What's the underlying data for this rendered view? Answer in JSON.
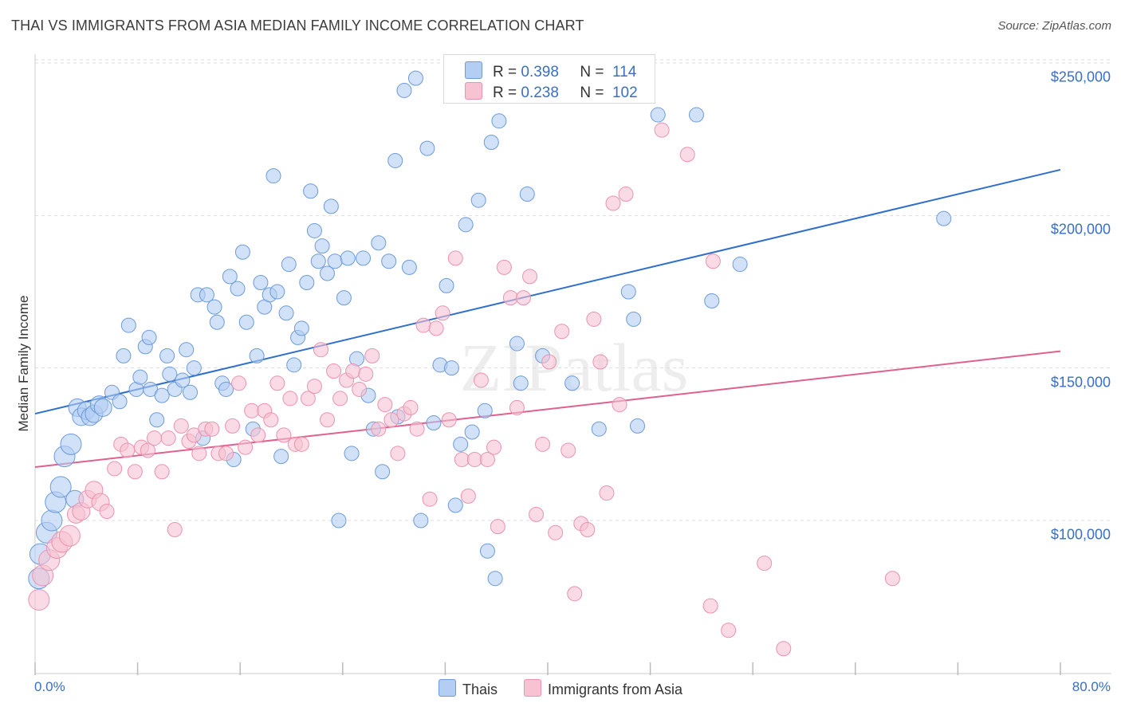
{
  "title": "THAI VS IMMIGRANTS FROM ASIA MEDIAN FAMILY INCOME CORRELATION CHART",
  "source": "Source: ZipAtlas.com",
  "watermark": "ZIPatlas",
  "colors": {
    "blue_fill": "#b3cdf3",
    "blue_stroke": "#6c9bdc",
    "blue_line": "#2f6fcc",
    "pink_fill": "#f7c2d2",
    "pink_stroke": "#ec92ae",
    "pink_line": "#e0608e",
    "axis_text": "#3a6fc2",
    "grid": "#dddddd"
  },
  "legend_top": [
    {
      "r_label": "R = ",
      "r_value": "0.398",
      "n_label": "N = ",
      "n_value": "114"
    },
    {
      "r_label": "R = ",
      "r_value": "0.238",
      "n_label": "N = ",
      "n_value": "102"
    }
  ],
  "chart_data": {
    "type": "scatter",
    "title": "THAI VS IMMIGRANTS FROM ASIA MEDIAN FAMILY INCOME CORRELATION CHART",
    "xlabel": "",
    "ylabel": "Median Family Income",
    "xlim": [
      0,
      80
    ],
    "ylim": [
      55000,
      260000
    ],
    "x_tick_labels": [
      "0.0%",
      "80.0%"
    ],
    "y_ticks": [
      100000,
      150000,
      200000,
      250000
    ],
    "y_tick_labels": [
      "$100,000",
      "$150,000",
      "$200,000",
      "$250,000"
    ],
    "legend_position": "bottom",
    "series": [
      {
        "name": "Thais",
        "r": 0.398,
        "n": 114,
        "trend": {
          "x": [
            0,
            80
          ],
          "y": [
            135000,
            215000
          ]
        },
        "points": [
          [
            0.3,
            81000
          ],
          [
            0.4,
            89000
          ],
          [
            0.9,
            96000
          ],
          [
            1.3,
            100000
          ],
          [
            1.6,
            106000
          ],
          [
            2,
            111000
          ],
          [
            2.3,
            121000
          ],
          [
            2.8,
            125000
          ],
          [
            3.1,
            107000
          ],
          [
            3.3,
            137000
          ],
          [
            3.6,
            134000
          ],
          [
            4,
            136000
          ],
          [
            4.3,
            134000
          ],
          [
            4.6,
            135000
          ],
          [
            5,
            138000
          ],
          [
            5.3,
            137000
          ],
          [
            6,
            142000
          ],
          [
            6.6,
            139000
          ],
          [
            6.9,
            154000
          ],
          [
            7.3,
            164000
          ],
          [
            7.9,
            143000
          ],
          [
            8.2,
            147000
          ],
          [
            8.6,
            157000
          ],
          [
            8.9,
            160000
          ],
          [
            9,
            143000
          ],
          [
            9.5,
            133000
          ],
          [
            9.9,
            141000
          ],
          [
            10.3,
            154000
          ],
          [
            10.5,
            148000
          ],
          [
            10.9,
            143000
          ],
          [
            11.5,
            146000
          ],
          [
            11.8,
            156000
          ],
          [
            12.1,
            142000
          ],
          [
            12.4,
            150000
          ],
          [
            12.7,
            174000
          ],
          [
            13.1,
            127000
          ],
          [
            13.4,
            174000
          ],
          [
            14,
            170000
          ],
          [
            14.2,
            165000
          ],
          [
            14.6,
            145000
          ],
          [
            14.9,
            143000
          ],
          [
            15.2,
            180000
          ],
          [
            15.5,
            120000
          ],
          [
            15.8,
            176000
          ],
          [
            16.2,
            188000
          ],
          [
            16.5,
            165000
          ],
          [
            17,
            130000
          ],
          [
            17.3,
            154000
          ],
          [
            17.6,
            178000
          ],
          [
            17.9,
            170000
          ],
          [
            18.3,
            174000
          ],
          [
            18.6,
            213000
          ],
          [
            18.9,
            175000
          ],
          [
            19.2,
            121000
          ],
          [
            19.6,
            168000
          ],
          [
            19.8,
            184000
          ],
          [
            20.2,
            151000
          ],
          [
            20.5,
            160000
          ],
          [
            20.8,
            163000
          ],
          [
            21.2,
            178000
          ],
          [
            21.5,
            208000
          ],
          [
            21.8,
            195000
          ],
          [
            22.1,
            185000
          ],
          [
            22.4,
            190000
          ],
          [
            22.8,
            181000
          ],
          [
            23.1,
            203000
          ],
          [
            23.4,
            185000
          ],
          [
            23.7,
            100000
          ],
          [
            24.1,
            173000
          ],
          [
            24.4,
            186000
          ],
          [
            24.7,
            122000
          ],
          [
            25.1,
            153000
          ],
          [
            25.6,
            186000
          ],
          [
            26,
            141000
          ],
          [
            26.4,
            130000
          ],
          [
            26.8,
            191000
          ],
          [
            27.1,
            116000
          ],
          [
            27.6,
            185000
          ],
          [
            28.1,
            218000
          ],
          [
            28.3,
            134000
          ],
          [
            28.8,
            241000
          ],
          [
            29.2,
            183000
          ],
          [
            29.7,
            245000
          ],
          [
            30.1,
            100000
          ],
          [
            30.6,
            222000
          ],
          [
            31.1,
            132000
          ],
          [
            31.6,
            151000
          ],
          [
            32.1,
            177000
          ],
          [
            32.5,
            150000
          ],
          [
            32.8,
            105000
          ],
          [
            33.2,
            125000
          ],
          [
            33.6,
            197000
          ],
          [
            34.1,
            129000
          ],
          [
            34.6,
            205000
          ],
          [
            35.1,
            136000
          ],
          [
            35.3,
            90000
          ],
          [
            35.6,
            224000
          ],
          [
            35.9,
            81000
          ],
          [
            36.2,
            231000
          ],
          [
            37.6,
            158000
          ],
          [
            37.9,
            145000
          ],
          [
            38.4,
            207000
          ],
          [
            39.6,
            154000
          ],
          [
            41.9,
            145000
          ],
          [
            44,
            130000
          ],
          [
            46.3,
            175000
          ],
          [
            46.7,
            166000
          ],
          [
            47,
            131000
          ],
          [
            48.6,
            233000
          ],
          [
            51.6,
            233000
          ],
          [
            52.8,
            172000
          ],
          [
            55,
            184000
          ],
          [
            70.9,
            199000
          ]
        ]
      },
      {
        "name": "Immigrants from Asia",
        "r": 0.238,
        "n": 102,
        "trend": {
          "x": [
            0,
            80
          ],
          "y": [
            117500,
            155500
          ]
        },
        "points": [
          [
            0.3,
            74000
          ],
          [
            0.6,
            82000
          ],
          [
            1.1,
            87000
          ],
          [
            1.7,
            91000
          ],
          [
            2.1,
            93000
          ],
          [
            2.7,
            95000
          ],
          [
            3.2,
            102000
          ],
          [
            3.6,
            103000
          ],
          [
            4.1,
            107000
          ],
          [
            4.6,
            110000
          ],
          [
            5.1,
            106000
          ],
          [
            5.6,
            103000
          ],
          [
            6.2,
            117000
          ],
          [
            6.7,
            125000
          ],
          [
            7.2,
            123000
          ],
          [
            7.8,
            116000
          ],
          [
            8.3,
            124000
          ],
          [
            8.8,
            123000
          ],
          [
            9.3,
            127000
          ],
          [
            9.9,
            116000
          ],
          [
            10.4,
            127000
          ],
          [
            10.9,
            97000
          ],
          [
            11.4,
            131000
          ],
          [
            12.0,
            126000
          ],
          [
            12.4,
            128000
          ],
          [
            12.8,
            122000
          ],
          [
            13.3,
            130000
          ],
          [
            13.8,
            130000
          ],
          [
            14.3,
            122000
          ],
          [
            14.9,
            122000
          ],
          [
            15.4,
            131000
          ],
          [
            15.9,
            145000
          ],
          [
            16.4,
            124000
          ],
          [
            16.9,
            136000
          ],
          [
            17.4,
            128000
          ],
          [
            17.9,
            136000
          ],
          [
            18.4,
            133000
          ],
          [
            18.9,
            145000
          ],
          [
            19.4,
            128000
          ],
          [
            19.9,
            140000
          ],
          [
            20.3,
            125000
          ],
          [
            20.8,
            125000
          ],
          [
            21.3,
            140000
          ],
          [
            21.8,
            144000
          ],
          [
            22.3,
            156000
          ],
          [
            22.8,
            133000
          ],
          [
            23.3,
            149000
          ],
          [
            23.8,
            140000
          ],
          [
            24.3,
            146000
          ],
          [
            24.8,
            149000
          ],
          [
            25.3,
            143000
          ],
          [
            25.8,
            148000
          ],
          [
            26.3,
            154000
          ],
          [
            26.8,
            130000
          ],
          [
            27.3,
            138000
          ],
          [
            27.8,
            133000
          ],
          [
            28.3,
            122000
          ],
          [
            28.8,
            135000
          ],
          [
            29.3,
            137000
          ],
          [
            29.8,
            130000
          ],
          [
            30.3,
            164000
          ],
          [
            30.8,
            107000
          ],
          [
            31.3,
            163000
          ],
          [
            31.8,
            168000
          ],
          [
            32.3,
            133000
          ],
          [
            32.8,
            186000
          ],
          [
            33.3,
            120000
          ],
          [
            33.8,
            108000
          ],
          [
            34.3,
            120000
          ],
          [
            34.8,
            146000
          ],
          [
            35.3,
            120000
          ],
          [
            35.8,
            124000
          ],
          [
            36.1,
            98000
          ],
          [
            36.6,
            183000
          ],
          [
            37.1,
            173000
          ],
          [
            37.6,
            137000
          ],
          [
            38.1,
            173000
          ],
          [
            38.6,
            180000
          ],
          [
            39.1,
            102000
          ],
          [
            39.6,
            125000
          ],
          [
            40.1,
            152000
          ],
          [
            40.6,
            96000
          ],
          [
            41.1,
            162000
          ],
          [
            41.6,
            123000
          ],
          [
            42.1,
            76000
          ],
          [
            42.6,
            99000
          ],
          [
            43.1,
            97000
          ],
          [
            43.6,
            166000
          ],
          [
            44.1,
            152000
          ],
          [
            44.6,
            109000
          ],
          [
            45.1,
            204000
          ],
          [
            45.6,
            138000
          ],
          [
            46.1,
            207000
          ],
          [
            48.9,
            228000
          ],
          [
            50.9,
            220000
          ],
          [
            52.7,
            72000
          ],
          [
            52.9,
            185000
          ],
          [
            54.1,
            64000
          ],
          [
            56.9,
            86000
          ],
          [
            58.4,
            58000
          ],
          [
            66.9,
            81000
          ]
        ]
      }
    ]
  }
}
